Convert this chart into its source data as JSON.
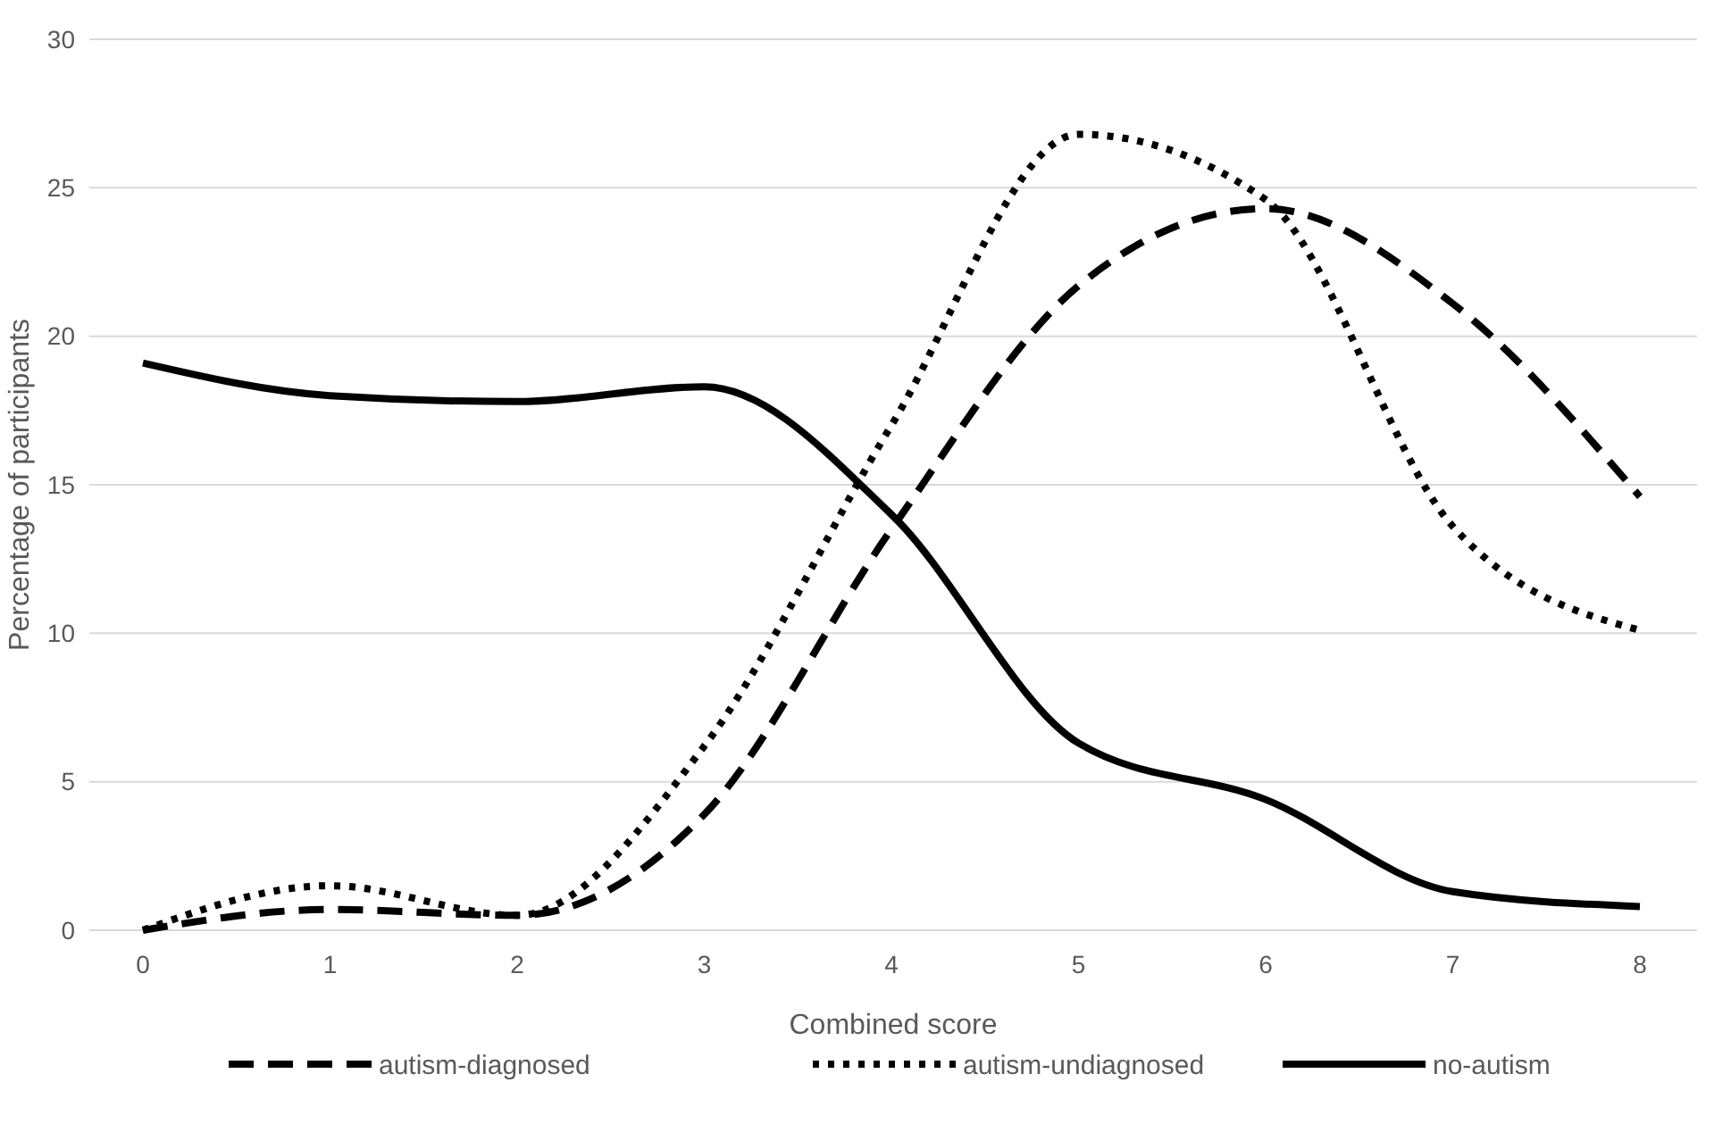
{
  "chart_data": {
    "type": "line",
    "xlabel": "Combined score",
    "ylabel": "Percentage of participants",
    "categories": [
      "0",
      "1",
      "2",
      "3",
      "4",
      "5",
      "6",
      "7",
      "8"
    ],
    "ylim": [
      0,
      30
    ],
    "yticks": [
      0,
      5,
      10,
      15,
      20,
      25,
      30
    ],
    "grid": "y",
    "legend": "bottom",
    "marker": "none",
    "series": [
      {
        "name": "autism-diagnosed",
        "color": "#000000",
        "line_style": "dashed",
        "values": [
          0,
          0.7,
          0.5,
          3.9,
          13.5,
          21.7,
          24.3,
          21.1,
          14.6
        ]
      },
      {
        "name": "autism-undiagnosed",
        "color": "#000000",
        "line_style": "dotted",
        "values": [
          0,
          1.5,
          0.5,
          6.2,
          17.0,
          26.8,
          24.6,
          13.6,
          10.1
        ]
      },
      {
        "name": "no-autism",
        "color": "#000000",
        "line_style": "solid",
        "values": [
          19.1,
          18.0,
          17.8,
          18.3,
          14.0,
          6.3,
          4.4,
          1.3,
          0.8
        ]
      }
    ]
  }
}
